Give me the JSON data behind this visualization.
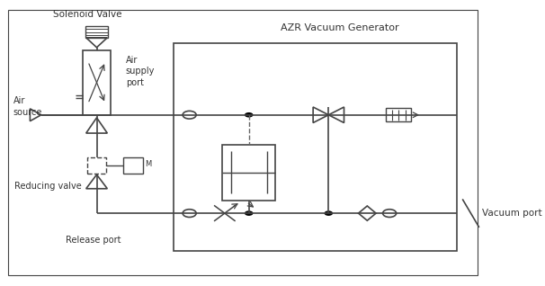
{
  "bg_color": "#ffffff",
  "line_color": "#444444",
  "text_color": "#333333",
  "labels": {
    "solenoid_valve": "Solenoid Valve",
    "air_supply_port": "Air\nsupply\nport",
    "air_source": "Air\nsource",
    "reducing_valve": "Reducing valve",
    "release_port": "Release port",
    "azr_vacuum": "AZR Vacuum Generator",
    "vacuum_port": "Vacuum port"
  }
}
